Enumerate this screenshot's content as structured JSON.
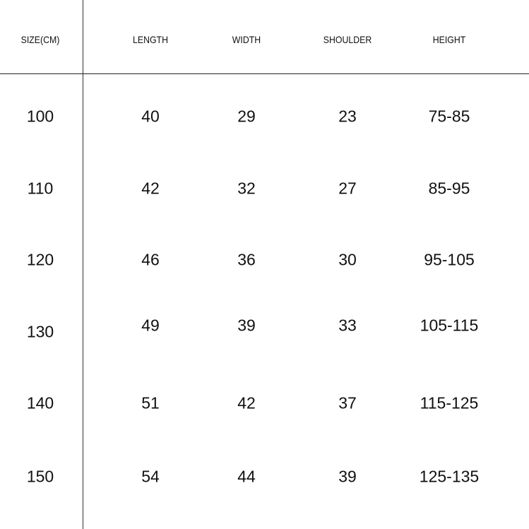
{
  "headers": [
    "SIZE(CM)",
    "LENGTH",
    "WIDTH",
    "SHOULDER",
    "HEIGHT"
  ],
  "rows": [
    [
      "100",
      "40",
      "29",
      "23",
      "75-85"
    ],
    [
      "110",
      "42",
      "32",
      "27",
      "85-95"
    ],
    [
      "120",
      "46",
      "36",
      "30",
      "95-105"
    ],
    [
      "130",
      "49",
      "39",
      "33",
      "105-115"
    ],
    [
      "140",
      "51",
      "42",
      "37",
      "115-125"
    ],
    [
      "150",
      "54",
      "44",
      "39",
      "125-135"
    ]
  ]
}
